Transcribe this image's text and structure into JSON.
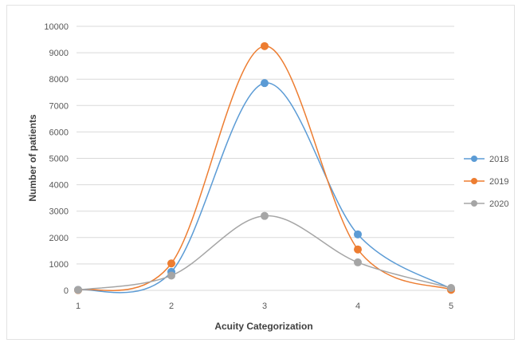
{
  "chart_data": {
    "type": "line",
    "smooth": true,
    "xlabel": "Acuity Categorization",
    "ylabel": "Number of patients",
    "x": [
      1,
      2,
      3,
      4,
      5
    ],
    "ylim": [
      0,
      10000
    ],
    "yticks": [
      0,
      1000,
      2000,
      3000,
      4000,
      5000,
      6000,
      7000,
      8000,
      9000,
      10000
    ],
    "grid": true,
    "legend_position": "right",
    "series": [
      {
        "name": "2018",
        "color": "#5b9bd5",
        "values": [
          20,
          700,
          7850,
          2120,
          60
        ]
      },
      {
        "name": "2019",
        "color": "#ed7d31",
        "values": [
          10,
          1020,
          9250,
          1550,
          20
        ]
      },
      {
        "name": "2020",
        "color": "#a5a5a5",
        "values": [
          15,
          560,
          2820,
          1060,
          90
        ]
      }
    ]
  }
}
